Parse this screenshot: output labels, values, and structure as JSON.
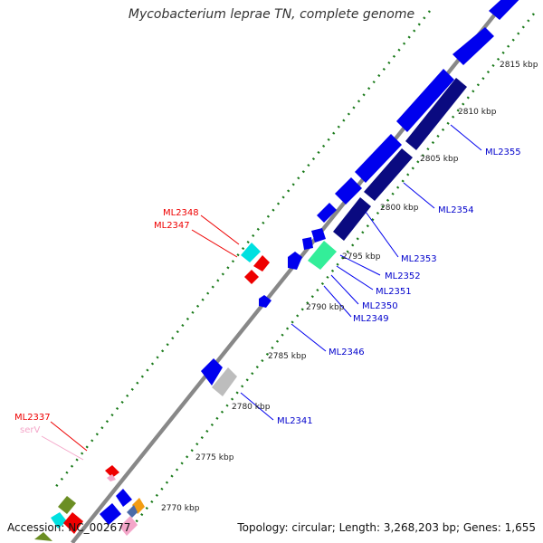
{
  "title": "Mycobacterium leprae TN, complete genome",
  "footer": {
    "accession": "Accession: NC_002677",
    "topology": "Topology: circular; Length: 3,268,203 bp; Genes: 1,655"
  },
  "ticks": [
    "2770 kbp",
    "2775 kbp",
    "2780 kbp",
    "2785 kbp",
    "2790 kbp",
    "2795 kbp",
    "2800 kbp",
    "2805 kbp",
    "2810 kbp",
    "2815 kbp"
  ],
  "gene_labels": {
    "ML2355": "ML2355",
    "ML2354": "ML2354",
    "ML2353": "ML2353",
    "ML2352": "ML2352",
    "ML2351": "ML2351",
    "ML2350": "ML2350",
    "ML2349": "ML2349",
    "ML2346": "ML2346",
    "ML2341": "ML2341",
    "ML2348": "ML2348",
    "ML2347": "ML2347",
    "ML2337": "ML2337",
    "serV": "serV"
  },
  "colors": {
    "blue": "#0000ee",
    "navy": "#0a0a80",
    "red": "#ee0000",
    "cyan": "#00e0e0",
    "mint": "#33ee99",
    "grey": "#bdbdbd",
    "pink": "#f4a6c9",
    "green_tick": "#1a7a1a",
    "olive": "#6b8e23",
    "orange": "#f39c12",
    "backbone": "#888888"
  }
}
